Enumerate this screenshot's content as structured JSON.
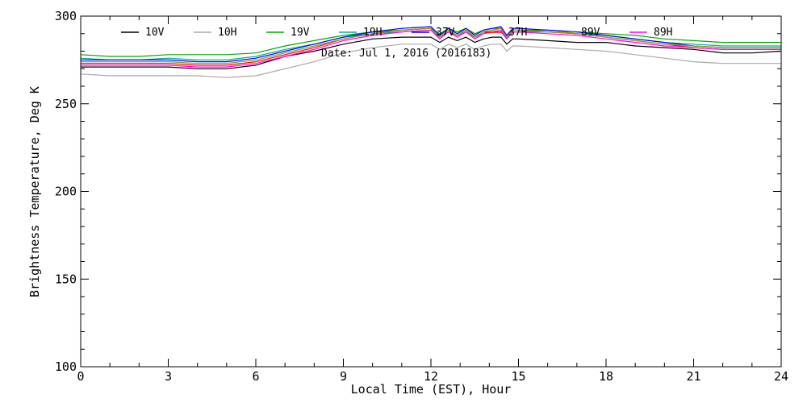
{
  "chart_data": {
    "type": "line",
    "title": "",
    "xlabel": "Local Time (EST), Hour",
    "ylabel": "Brightness Temperature, Deg K",
    "xlim": [
      0,
      24
    ],
    "ylim": [
      100,
      300
    ],
    "xticks": [
      0,
      3,
      6,
      9,
      12,
      15,
      18,
      21,
      24
    ],
    "yticks": [
      100,
      150,
      200,
      250,
      300
    ],
    "grid": false,
    "legend_position": "top",
    "annotation": "Date: Jul  1, 2016 (2016183)",
    "x": [
      0,
      1,
      2,
      3,
      4,
      5,
      6,
      7,
      8,
      9,
      10,
      11,
      12,
      12.3,
      12.6,
      12.9,
      13.2,
      13.5,
      13.8,
      14.1,
      14.4,
      14.6,
      14.8,
      15,
      16,
      17,
      18,
      19,
      20,
      21,
      22,
      23,
      24
    ],
    "series": [
      {
        "name": "10V",
        "color": "#000000",
        "values": [
          271,
          271,
          271,
          271,
          270,
          270,
          272,
          277,
          280,
          284,
          287,
          288,
          288,
          285,
          288,
          286,
          288,
          285,
          287,
          288,
          288,
          284,
          287,
          287,
          286,
          285,
          285,
          283,
          282,
          281,
          279,
          279,
          280
        ]
      },
      {
        "name": "10H",
        "color": "#aaaaaa",
        "values": [
          267,
          266,
          266,
          266,
          266,
          265,
          266,
          270,
          274,
          279,
          282,
          284,
          284,
          281,
          284,
          282,
          284,
          281,
          283,
          284,
          284,
          280,
          283,
          283,
          282,
          281,
          280,
          278,
          276,
          274,
          273,
          273,
          273
        ]
      },
      {
        "name": "19V",
        "color": "#00aa00",
        "values": [
          278,
          277,
          277,
          278,
          278,
          278,
          279,
          283,
          286,
          289,
          291,
          292,
          293,
          290,
          293,
          291,
          293,
          290,
          292,
          293,
          293,
          289,
          292,
          292,
          292,
          291,
          290,
          289,
          287,
          286,
          285,
          285,
          285
        ]
      },
      {
        "name": "19H",
        "color": "#00aaaa",
        "values": [
          276,
          275,
          275,
          276,
          275,
          275,
          277,
          281,
          284,
          288,
          290,
          291,
          292,
          288,
          291,
          289,
          291,
          288,
          290,
          291,
          291,
          287,
          291,
          291,
          291,
          290,
          289,
          287,
          285,
          284,
          283,
          283,
          283
        ]
      },
      {
        "name": "37V",
        "color": "#0000ff",
        "values": [
          275,
          275,
          275,
          275,
          274,
          274,
          276,
          280,
          284,
          288,
          291,
          293,
          294,
          289,
          293,
          290,
          293,
          289,
          292,
          293,
          294,
          289,
          293,
          293,
          292,
          291,
          289,
          287,
          285,
          283,
          282,
          282,
          282
        ]
      },
      {
        "name": "37H",
        "color": "#ff0000",
        "values": [
          273,
          273,
          273,
          273,
          272,
          272,
          274,
          278,
          282,
          287,
          290,
          292,
          293,
          288,
          292,
          289,
          292,
          288,
          291,
          292,
          293,
          288,
          292,
          292,
          291,
          290,
          288,
          286,
          284,
          282,
          281,
          281,
          281
        ]
      },
      {
        "name": "89V",
        "color": "#999900",
        "values": [
          274,
          274,
          274,
          274,
          273,
          273,
          275,
          279,
          283,
          287,
          290,
          292,
          293,
          288,
          292,
          289,
          292,
          288,
          291,
          292,
          293,
          288,
          292,
          292,
          291,
          290,
          288,
          286,
          284,
          283,
          282,
          282,
          282
        ]
      },
      {
        "name": "89H",
        "color": "#ff00ff",
        "values": [
          272,
          272,
          272,
          272,
          271,
          271,
          273,
          277,
          281,
          286,
          289,
          291,
          292,
          287,
          291,
          288,
          291,
          287,
          290,
          291,
          292,
          287,
          291,
          291,
          290,
          289,
          287,
          285,
          283,
          282,
          281,
          281,
          281
        ]
      }
    ]
  }
}
